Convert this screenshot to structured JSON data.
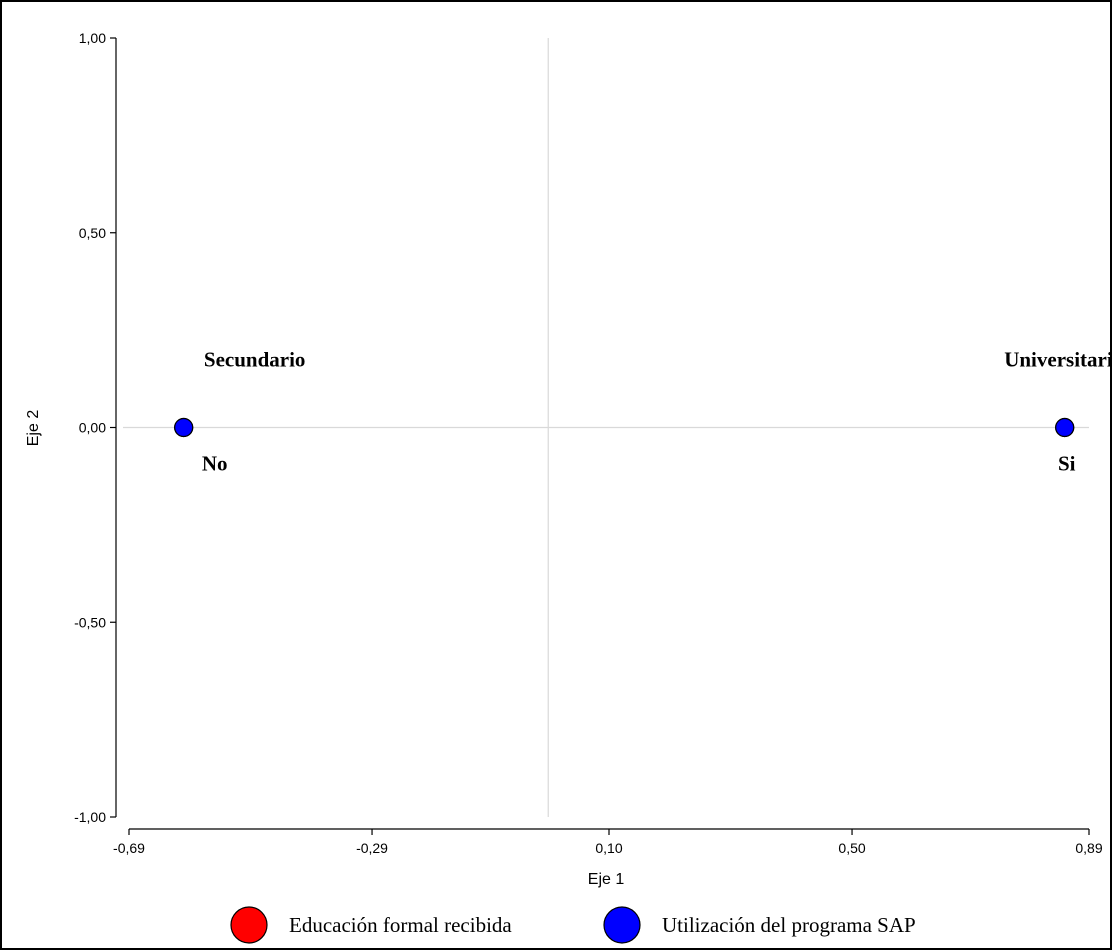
{
  "chart_data": {
    "type": "scatter",
    "xlabel": "Eje 1",
    "ylabel": "Eje 2",
    "xlim": [
      -0.69,
      0.89
    ],
    "ylim": [
      -1.0,
      1.0
    ],
    "xticks": [
      "-0,69",
      "-0,29",
      "0,10",
      "0,50",
      "0,89"
    ],
    "xtick_values": [
      -0.69,
      -0.29,
      0.1,
      0.5,
      0.89
    ],
    "yticks": [
      "1,00",
      "0,50",
      "0,00",
      "-0,50",
      "-1,00"
    ],
    "ytick_values": [
      1.0,
      0.5,
      0.0,
      -0.5,
      -1.0
    ],
    "reference_lines": {
      "x": 0.0,
      "y": 0.0
    },
    "grid": false,
    "legend_position": "bottom",
    "series": [
      {
        "name": "Educación formal recibida",
        "color": "#ff0000",
        "points": [
          {
            "label": "Secundario",
            "x": -0.6,
            "y": 0.0
          },
          {
            "label": "Universitario",
            "x": 0.85,
            "y": 0.0
          }
        ]
      },
      {
        "name": "Utilización del programa SAP",
        "color": "#0000ff",
        "points": [
          {
            "label": "No",
            "x": -0.6,
            "y": 0.0
          },
          {
            "label": "Si",
            "x": 0.85,
            "y": 0.0
          }
        ]
      }
    ]
  }
}
